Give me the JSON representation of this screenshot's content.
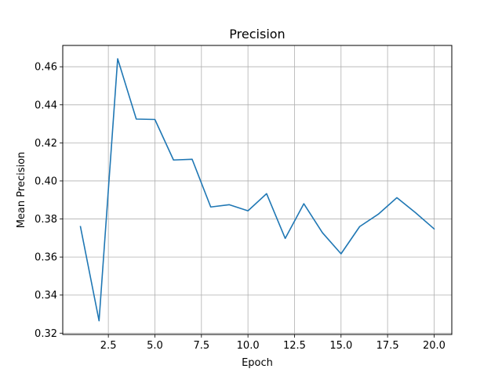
{
  "chart_data": {
    "type": "line",
    "title": "Precision",
    "xlabel": "Epoch",
    "ylabel": "Mean Precision",
    "grid": true,
    "xlim": [
      0.05,
      20.95
    ],
    "ylim": [
      0.3193,
      0.4712
    ],
    "x_ticks": [
      2.5,
      5.0,
      7.5,
      10.0,
      12.5,
      15.0,
      17.5,
      20.0
    ],
    "x_tick_labels": [
      "2.5",
      "5.0",
      "7.5",
      "10.0",
      "12.5",
      "15.0",
      "17.5",
      "20.0"
    ],
    "y_ticks": [
      0.32,
      0.34,
      0.36,
      0.38,
      0.4,
      0.42,
      0.44,
      0.46
    ],
    "y_tick_labels": [
      "0.32",
      "0.34",
      "0.36",
      "0.38",
      "0.40",
      "0.42",
      "0.44",
      "0.46"
    ],
    "series": [
      {
        "color": "#1f77b4",
        "x": [
          1,
          2,
          3,
          4,
          5,
          6,
          7,
          8,
          9,
          10,
          11,
          12,
          13,
          14,
          15,
          16,
          17,
          18,
          19,
          20
        ],
        "values": [
          0.376,
          0.3265,
          0.4642,
          0.4325,
          0.4323,
          0.411,
          0.4114,
          0.3863,
          0.3875,
          0.3843,
          0.3933,
          0.3698,
          0.388,
          0.3728,
          0.3617,
          0.376,
          0.3825,
          0.3912,
          0.3833,
          0.3748
        ]
      }
    ]
  }
}
